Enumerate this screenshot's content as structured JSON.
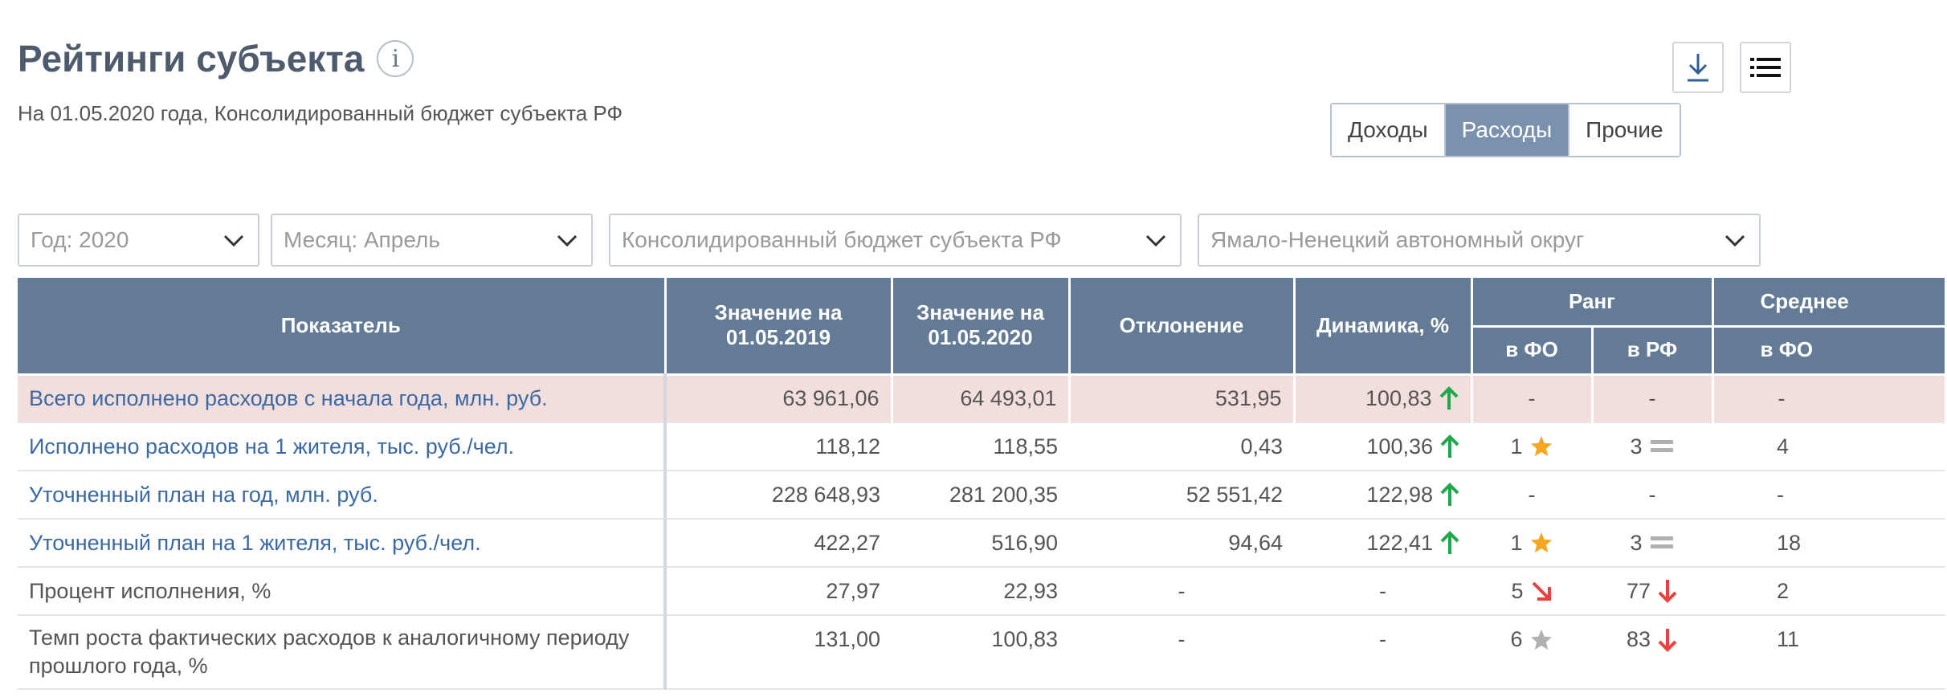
{
  "header": {
    "title": "Рейтинги субъекта",
    "info_icon_glyph": "i",
    "subtitle": "На 01.05.2020 года, Консолидированный бюджет субъекта РФ"
  },
  "toolbar": {
    "download_icon": "download-icon",
    "list_icon": "list-icon"
  },
  "segment": {
    "buttons": [
      {
        "label": "Доходы",
        "active": false
      },
      {
        "label": "Расходы",
        "active": true
      },
      {
        "label": "Прочие",
        "active": false
      }
    ]
  },
  "filters": {
    "year": "Год: 2020",
    "month": "Месяц: Апрель",
    "budget": "Консолидированный бюджет субъекта РФ",
    "region": "Ямало-Ненецкий автономный округ"
  },
  "table": {
    "headers": {
      "indicator": "Показатель",
      "value_2019": "Значение на 01.05.2019",
      "value_2020": "Значение на 01.05.2020",
      "deviation": "Отклонение",
      "dynamics": "Динамика, %",
      "rank": "Ранг",
      "rank_fo": "в ФО",
      "rank_rf": "в РФ",
      "avg": "Среднее",
      "avg_fo": "в ФО"
    },
    "rows": [
      {
        "name": "Всего исполнено расходов с начала года, млн. руб.",
        "v2019": "63 961,06",
        "v2020": "64 493,01",
        "dev": "531,95",
        "dyn": "100,83",
        "rank_fo": "-",
        "rank_rf": "-",
        "avg_fo": "-"
      },
      {
        "name": "Исполнено расходов на 1 жителя, тыс. руб./чел.",
        "v2019": "118,12",
        "v2020": "118,55",
        "dev": "0,43",
        "dyn": "100,36",
        "rank_fo": "1",
        "rank_rf": "3",
        "avg_fo": "4"
      },
      {
        "name": "Уточненный план на год, млн. руб.",
        "v2019": "228 648,93",
        "v2020": "281 200,35",
        "dev": "52 551,42",
        "dyn": "122,98",
        "rank_fo": "-",
        "rank_rf": "-",
        "avg_fo": "-"
      },
      {
        "name": "Уточненный план на 1 жителя, тыс. руб./чел.",
        "v2019": "422,27",
        "v2020": "516,90",
        "dev": "94,64",
        "dyn": "122,41",
        "rank_fo": "1",
        "rank_rf": "3",
        "avg_fo": "18"
      },
      {
        "name": "Процент исполнения, %",
        "v2019": "27,97",
        "v2020": "22,93",
        "dev": "-",
        "dyn": "-",
        "rank_fo": "5",
        "rank_rf": "77",
        "avg_fo": "2"
      },
      {
        "name": "Темп роста фактических расходов к аналогичному периоду прошлого года, %",
        "v2019": "131,00",
        "v2020": "100,83",
        "dev": "-",
        "dyn": "-",
        "rank_fo": "6",
        "rank_rf": "83",
        "avg_fo": "11"
      }
    ]
  },
  "colors": {
    "header_bg": "#647b96",
    "highlight_row": "#f2dedc",
    "link": "#3b69a3",
    "arrow_up": "#1fa84a",
    "arrow_down": "#e8423f",
    "star_gold": "#f5a623",
    "star_gray": "#b0b0b0"
  }
}
